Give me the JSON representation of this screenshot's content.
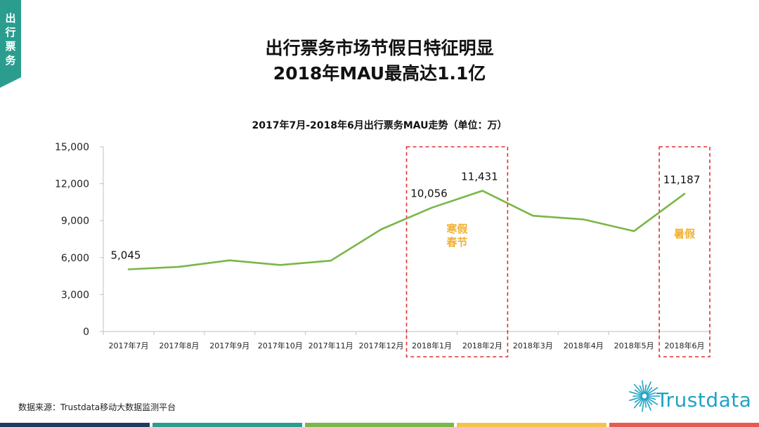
{
  "side_tab": {
    "label": "出行票务",
    "color": "#2a9d8f"
  },
  "header": {
    "title_line1": "出行票务市场节假日特征明显",
    "title_line2": "2018年MAU最高达1.1亿"
  },
  "chart_data": {
    "type": "line",
    "title": "2017年7月-2018年6月出行票务MAU走势（单位：万）",
    "categories": [
      "2017年7月",
      "2017年8月",
      "2017年9月",
      "2017年10月",
      "2017年11月",
      "2017年12月",
      "2018年1月",
      "2018年2月",
      "2018年3月",
      "2018年4月",
      "2018年5月",
      "2018年6月"
    ],
    "series": [
      {
        "values": [
          5045,
          5250,
          5780,
          5400,
          5750,
          8300,
          10056,
          11431,
          9400,
          9100,
          8150,
          11187
        ],
        "color": "#7ab648"
      }
    ],
    "data_labels": [
      {
        "index": 0,
        "text": "5,045"
      },
      {
        "index": 6,
        "text": "10,056"
      },
      {
        "index": 7,
        "text": "11,431"
      },
      {
        "index": 11,
        "text": "11,187"
      }
    ],
    "yticks": [
      "0",
      "3,000",
      "6,000",
      "9,000",
      "12,000",
      "15,000"
    ],
    "ylim": [
      0,
      15000
    ],
    "grid": false,
    "highlights": [
      {
        "from_index": 6,
        "to_index": 7,
        "label_line1": "寒假",
        "label_line2": "春节"
      },
      {
        "from_index": 11,
        "to_index": 11,
        "label_line1": "暑假",
        "label_line2": ""
      }
    ],
    "highlight_color": "#e03030",
    "highlight_label_color": "#f0b030"
  },
  "footer": {
    "source": "数据来源：Trustdata移动大数据监测平台",
    "logo_text": "Trustdata",
    "logo_color": "#1fa3c4",
    "bar_colors": [
      "#1e3a5f",
      "#2a9d8f",
      "#7ab648",
      "#f5c24c",
      "#e85a4f"
    ]
  }
}
